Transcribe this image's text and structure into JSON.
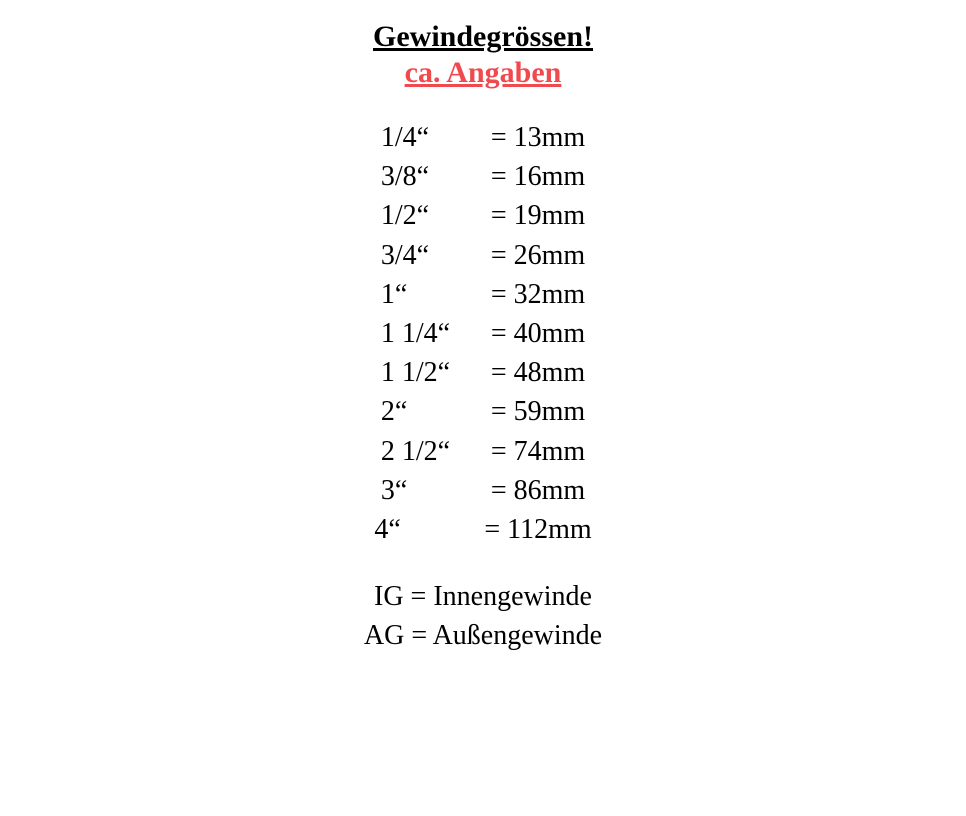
{
  "title": "Gewindegrössen!",
  "subtitle": "ca. Angaben",
  "subtitle_color": "#f04a4f",
  "title_color": "#000000",
  "text_color": "#000000",
  "background_color": "#ffffff",
  "title_fontsize": 30,
  "body_fontsize": 28,
  "sizes": [
    {
      "label": "1/4“",
      "value": "= 13mm"
    },
    {
      "label": "3/8“",
      "value": "= 16mm"
    },
    {
      "label": "1/2“",
      "value": "= 19mm"
    },
    {
      "label": "3/4“",
      "value": "= 26mm"
    },
    {
      "label": "1“",
      "value": "= 32mm"
    },
    {
      "label": "1 1/4“",
      "value": "= 40mm"
    },
    {
      "label": "1 1/2“",
      "value": "= 48mm"
    },
    {
      "label": "2“",
      "value": "= 59mm"
    },
    {
      "label": "2 1/2“",
      "value": "= 74mm"
    },
    {
      "label": "3“",
      "value": "= 86mm"
    },
    {
      "label": "4“",
      "value": "= 112mm"
    }
  ],
  "legend": [
    "IG = Innengewinde",
    "AG = Außengewinde"
  ]
}
